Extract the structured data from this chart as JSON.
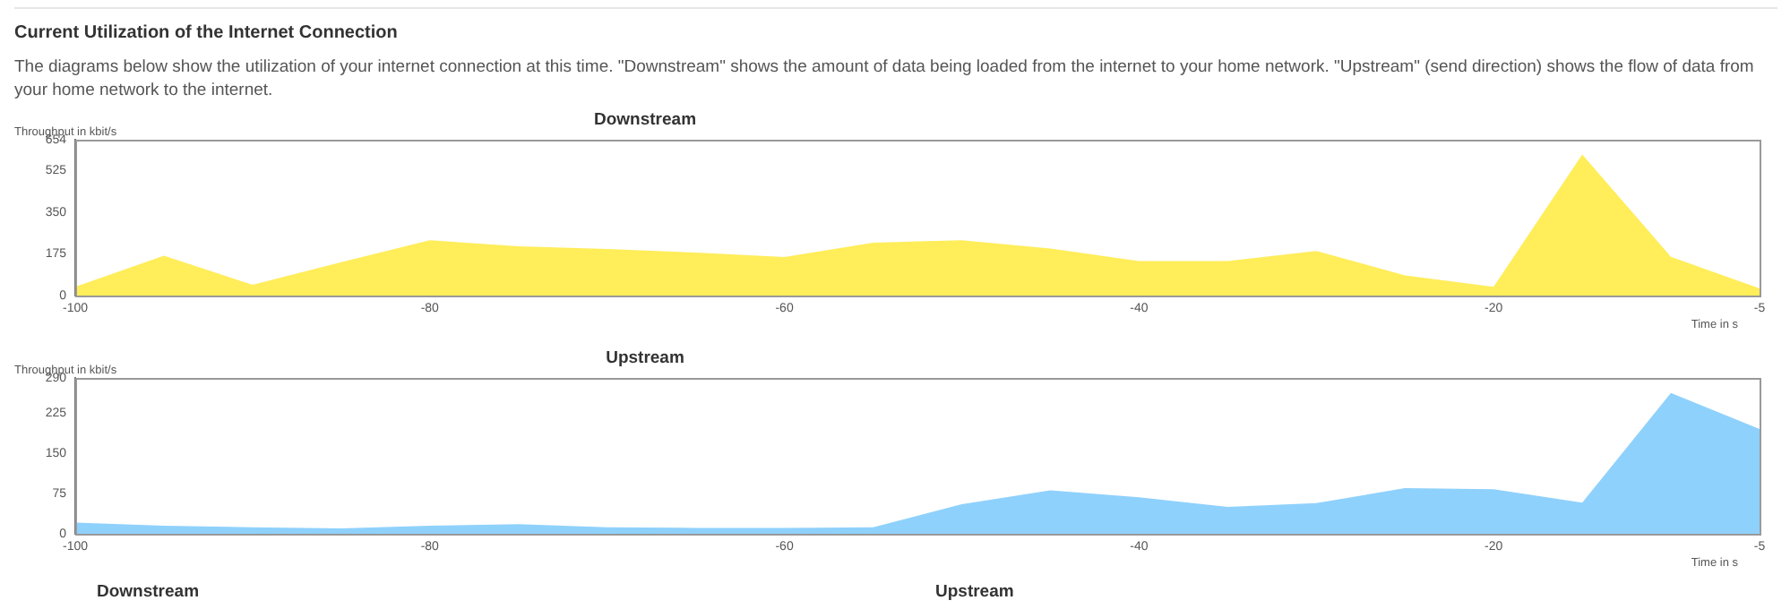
{
  "chart_data": [
    {
      "type": "other",
      "title": "Current Utilization of the Internet Connection",
      "annotations": [
        "The diagrams below show the utilization of your internet connection at this time. \"Downstream\" shows the amount of data being loaded from the internet to your home network. \"Upstream\" (send direction) shows the flow of data from your home network to the internet."
      ]
    },
    {
      "type": "area",
      "title": "Downstream",
      "ylabel": "Throughput in kbit/s",
      "xlabel": "Time in s",
      "x": [
        -100,
        -95,
        -90,
        -85,
        -80,
        -75,
        -70,
        -65,
        -60,
        -55,
        -50,
        -45,
        -40,
        -35,
        -30,
        -25,
        -20,
        -15,
        -10,
        -5
      ],
      "series": [
        {
          "color": "#ffed5a",
          "values": [
            37,
            167,
            45,
            140,
            232,
            207,
            195,
            180,
            162,
            222,
            232,
            197,
            145,
            145,
            187,
            85,
            37,
            592,
            163,
            30
          ]
        }
      ],
      "xlim": [
        -100,
        -5
      ],
      "xticks": [
        -100,
        -80,
        -60,
        -40,
        -20,
        -5
      ],
      "ylim": [
        0,
        654
      ],
      "yticks": [
        0,
        175,
        350,
        525,
        654
      ],
      "grid": false,
      "legend": false
    },
    {
      "type": "area",
      "title": "Upstream",
      "ylabel": "Throughput in kbit/s",
      "xlabel": "Time in s",
      "x": [
        -100,
        -95,
        -90,
        -85,
        -80,
        -75,
        -70,
        -65,
        -60,
        -55,
        -50,
        -45,
        -40,
        -35,
        -30,
        -25,
        -20,
        -15,
        -10,
        -5
      ],
      "series": [
        {
          "color": "#8fd1fd",
          "values": [
            21,
            15,
            12,
            10,
            15,
            18,
            12,
            11,
            11,
            12,
            55,
            81,
            68,
            50,
            57,
            85,
            83,
            58,
            262,
            195
          ]
        }
      ],
      "xlim": [
        -100,
        -5
      ],
      "xticks": [
        -100,
        -80,
        -60,
        -40,
        -20,
        -5
      ],
      "ylim": [
        0,
        290
      ],
      "yticks": [
        0,
        75,
        150,
        225,
        290
      ],
      "grid": false,
      "legend": false
    },
    {
      "type": "other",
      "annotations": [
        "Downstream",
        "Upstream"
      ]
    }
  ]
}
